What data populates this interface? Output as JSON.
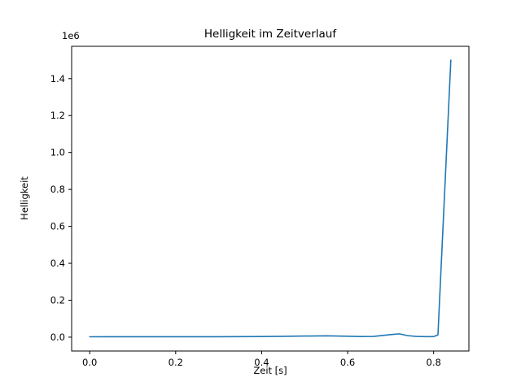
{
  "figure": {
    "title": "Helligkeit im Zeitverlauf",
    "xlabel": "Zeit [s]",
    "ylabel": "Helligkeit",
    "y_offset_text": "1e6"
  },
  "chart_data": {
    "type": "line",
    "title": "Helligkeit im Zeitverlauf",
    "xlabel": "Zeit [s]",
    "ylabel": "Helligkeit",
    "y_offset_label": "1e6",
    "grid": false,
    "legend": "none",
    "line_color": "#1f77b4",
    "line_width": 1.6,
    "xlim": [
      -0.042,
      0.882
    ],
    "ylim": [
      -75000,
      1575000
    ],
    "xticks": {
      "values": [
        0.0,
        0.2,
        0.4,
        0.6,
        0.8
      ],
      "labels": [
        "0.0",
        "0.2",
        "0.4",
        "0.6",
        "0.8"
      ]
    },
    "yticks": {
      "values": [
        0,
        200000,
        400000,
        600000,
        800000,
        1000000,
        1200000,
        1400000
      ],
      "labels": [
        "0.0",
        "0.2",
        "0.4",
        "0.6",
        "0.8",
        "1.0",
        "1.2",
        "1.4"
      ]
    },
    "series": [
      {
        "name": "Helligkeit",
        "x": [
          0.0,
          0.05,
          0.1,
          0.15,
          0.2,
          0.25,
          0.3,
          0.35,
          0.4,
          0.45,
          0.5,
          0.55,
          0.6,
          0.63,
          0.66,
          0.7,
          0.72,
          0.74,
          0.76,
          0.78,
          0.8,
          0.81,
          0.84
        ],
        "y": [
          2000,
          2200,
          2100,
          2300,
          2200,
          2400,
          2500,
          2800,
          3500,
          4500,
          6000,
          7000,
          5000,
          3500,
          4000,
          14000,
          18000,
          8000,
          4000,
          3000,
          3000,
          12000,
          1500000
        ]
      }
    ]
  }
}
